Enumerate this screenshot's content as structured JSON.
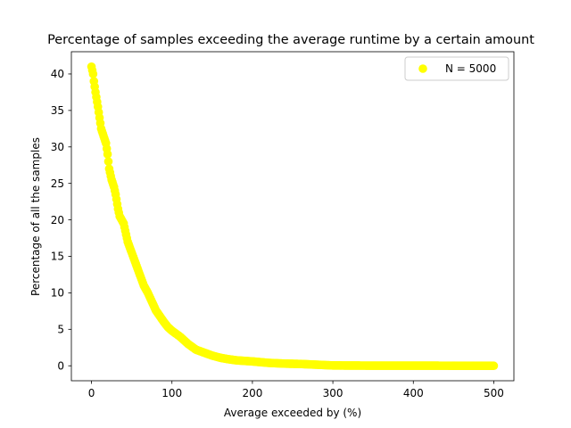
{
  "chart_data": {
    "type": "scatter",
    "title": "Percentage of samples exceeding the average runtime by a certain amount",
    "xlabel": "Average exceeded by (%)",
    "ylabel": "Percentage of all the samples",
    "xlim": [
      -25,
      525
    ],
    "ylim": [
      -2.05,
      43.05
    ],
    "xticks": [
      0,
      100,
      200,
      300,
      400,
      500
    ],
    "yticks": [
      0,
      5,
      10,
      15,
      20,
      25,
      30,
      35,
      40
    ],
    "grid": false,
    "legend_position": "top-right",
    "series": [
      {
        "name": "N = 5000",
        "color": "#ffff00",
        "anchors": [
          [
            0,
            41.0
          ],
          [
            2,
            40.0
          ],
          [
            3,
            39.0
          ],
          [
            5,
            37.5
          ],
          [
            8,
            35.5
          ],
          [
            10,
            34.0
          ],
          [
            12,
            32.5
          ],
          [
            15,
            31.5
          ],
          [
            18,
            30.5
          ],
          [
            20,
            29.0
          ],
          [
            22,
            27.0
          ],
          [
            25,
            25.5
          ],
          [
            28,
            24.5
          ],
          [
            30,
            23.5
          ],
          [
            33,
            21.5
          ],
          [
            35,
            20.5
          ],
          [
            40,
            19.5
          ],
          [
            42,
            18.5
          ],
          [
            45,
            17.0
          ],
          [
            50,
            15.5
          ],
          [
            55,
            14.0
          ],
          [
            60,
            12.5
          ],
          [
            65,
            11.0
          ],
          [
            70,
            10.0
          ],
          [
            75,
            8.8
          ],
          [
            80,
            7.6
          ],
          [
            85,
            6.8
          ],
          [
            90,
            6.0
          ],
          [
            95,
            5.3
          ],
          [
            100,
            4.8
          ],
          [
            105,
            4.4
          ],
          [
            110,
            4.0
          ],
          [
            115,
            3.5
          ],
          [
            120,
            3.0
          ],
          [
            125,
            2.6
          ],
          [
            130,
            2.2
          ],
          [
            140,
            1.8
          ],
          [
            150,
            1.4
          ],
          [
            160,
            1.1
          ],
          [
            170,
            0.9
          ],
          [
            180,
            0.75
          ],
          [
            200,
            0.6
          ],
          [
            220,
            0.4
          ],
          [
            240,
            0.3
          ],
          [
            260,
            0.25
          ],
          [
            280,
            0.15
          ],
          [
            300,
            0.05
          ],
          [
            350,
            0.02
          ],
          [
            400,
            0.02
          ],
          [
            450,
            0.01
          ],
          [
            500,
            0.0
          ]
        ]
      }
    ]
  }
}
